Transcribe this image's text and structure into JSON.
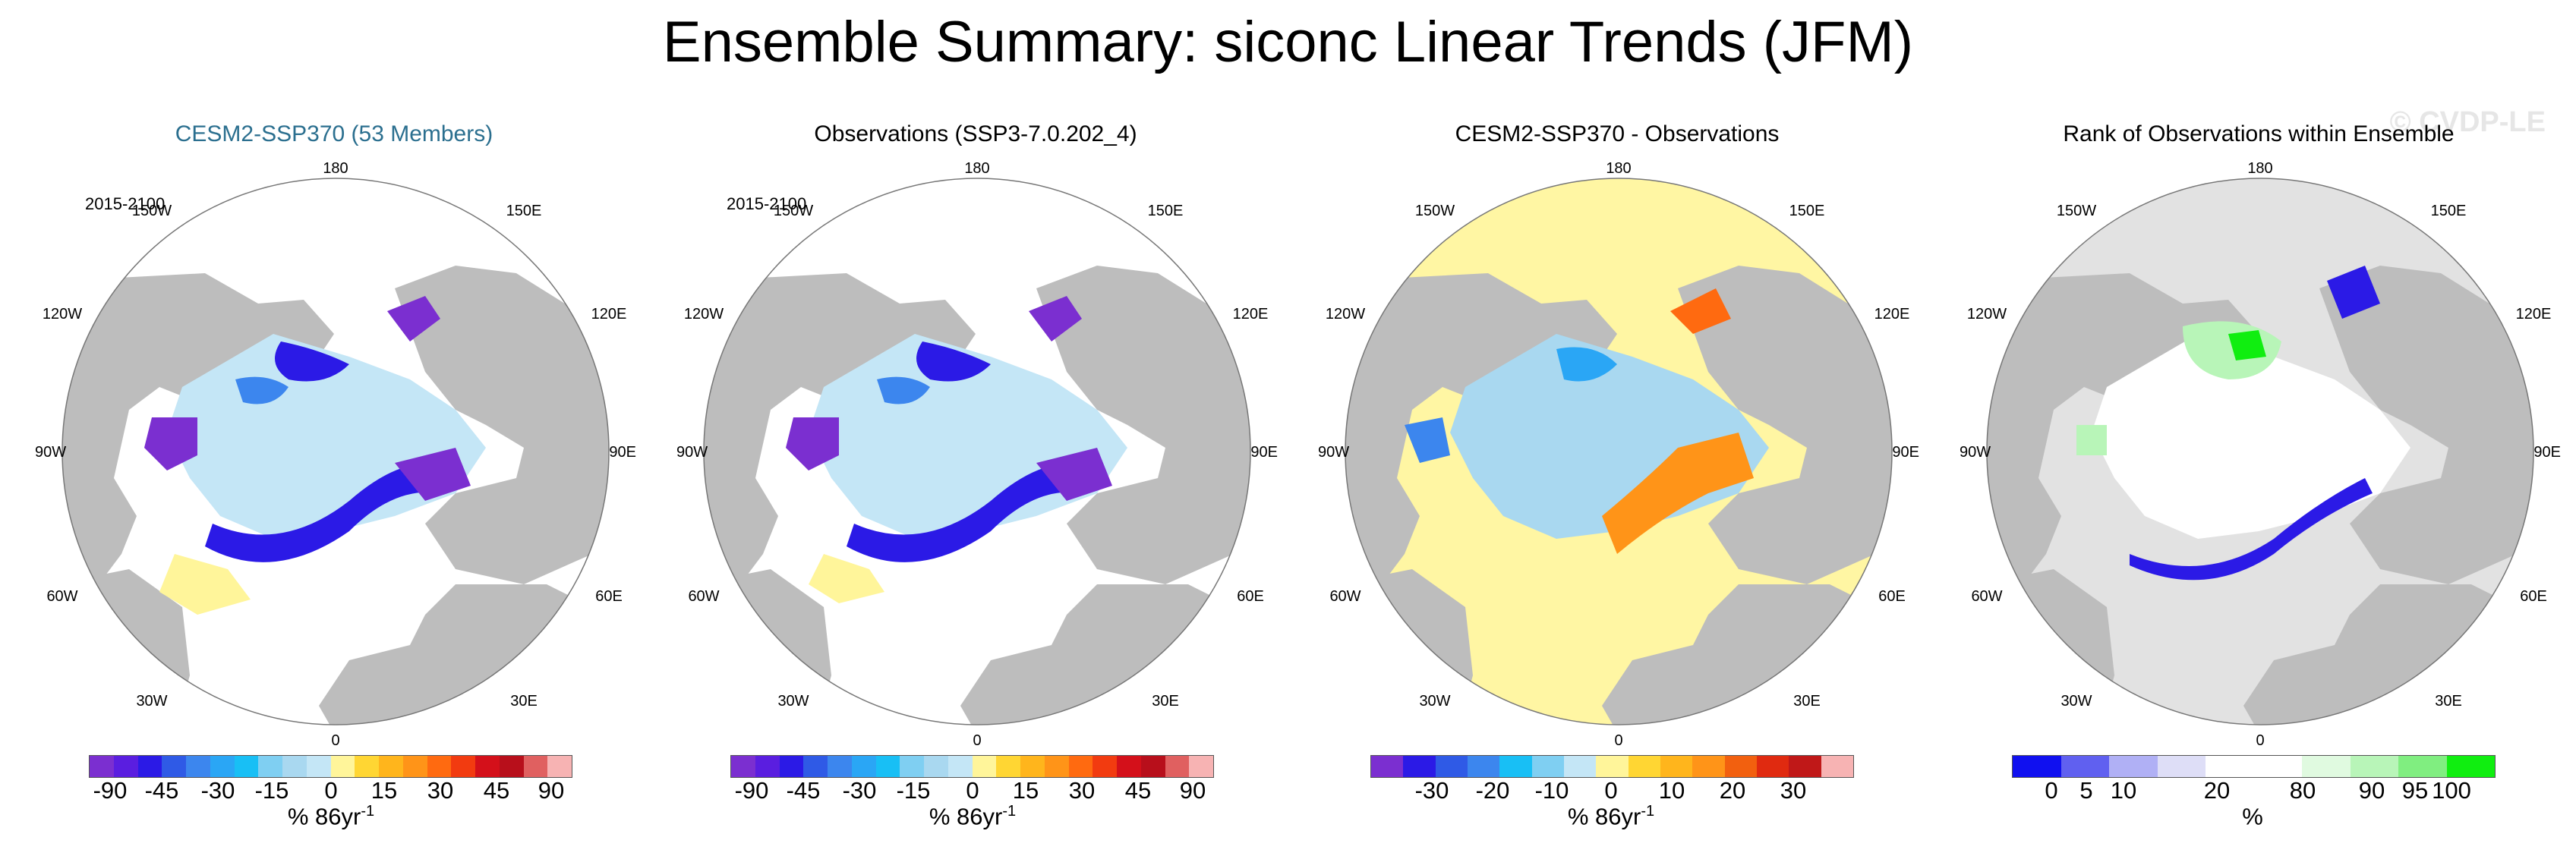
{
  "title": "Ensemble Summary: siconc Linear Trends (JFM)",
  "watermark": "© CVDP-LE",
  "lon_labels": {
    "top": "180",
    "bottom": "0",
    "left": "90W",
    "right": "90E",
    "ul1": "150W",
    "ul2": "120W",
    "ur1": "150E",
    "ur2": "120E",
    "ll1": "60W",
    "ll2": "30W",
    "lr1": "60E",
    "lr2": "30E"
  },
  "panels": [
    {
      "title": "CESM2-SSP370 (53 Members)",
      "date_range": "2015-2100",
      "colorbar_ticks": [
        "-90",
        "-45",
        "-30",
        "-15",
        "0",
        "15",
        "30",
        "45",
        "90"
      ],
      "unit": "% 86yr",
      "unit_sup": "-1"
    },
    {
      "title": "Observations (SSP3-7.0.202_4)",
      "date_range": "2015-2100",
      "colorbar_ticks": [
        "-90",
        "-45",
        "-30",
        "-15",
        "0",
        "15",
        "30",
        "45",
        "90"
      ],
      "unit": "% 86yr",
      "unit_sup": "-1"
    },
    {
      "title": "CESM2-SSP370 - Observations",
      "date_range": "",
      "colorbar_ticks": [
        "-30",
        "-20",
        "-10",
        "0",
        "10",
        "20",
        "30"
      ],
      "unit": "% 86yr",
      "unit_sup": "-1"
    },
    {
      "title": "Rank of Observations within Ensemble",
      "date_range": "",
      "colorbar_ticks": [
        "0",
        "5",
        "10",
        "20",
        "80",
        "90",
        "95",
        "100"
      ],
      "unit": "%",
      "unit_sup": ""
    }
  ],
  "colors": {
    "land": "#bdbdbd",
    "ocean_bg": "#ffffff",
    "diff_bg": "#fff6a3",
    "rank_bg": "#e2e2e2",
    "trend_scale": [
      "#7b2fd0",
      "#5a1ee0",
      "#2b1ae6",
      "#2f5ae6",
      "#3c86ee",
      "#2aa6f5",
      "#18bff5",
      "#7fcff2",
      "#a9d8f0",
      "#c4e6f6",
      "#fff59a",
      "#ffd633",
      "#ffb51c",
      "#ff9418",
      "#ff6a10",
      "#f23b10",
      "#d4101a",
      "#b80f1b",
      "#e06060",
      "#f7b3b3"
    ],
    "diff_scale": [
      "#7b2fd0",
      "#2b1ae6",
      "#2f5ae6",
      "#3c86ee",
      "#18bff5",
      "#7fcff2",
      "#c4e6f6",
      "#fff59a",
      "#ffd633",
      "#ffb51c",
      "#ff9418",
      "#f2600f",
      "#e02a10",
      "#c01818",
      "#f7b3b3"
    ],
    "rank_scale": [
      "#1010f0",
      "#6060f0",
      "#b0b0f5",
      "#dedef7",
      "#ffffff",
      "#ffffff",
      "#e0fae0",
      "#b8f5b8",
      "#80ee80",
      "#10ee10"
    ]
  }
}
